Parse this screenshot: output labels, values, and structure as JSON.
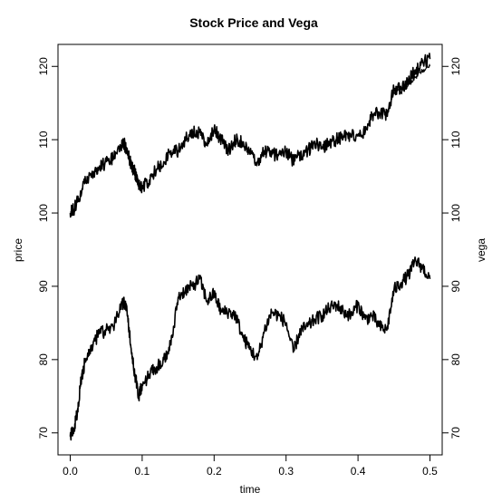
{
  "chart_data": {
    "type": "line",
    "title": "Stock Price and Vega",
    "xlabel": "time",
    "ylabel": "price",
    "y2label": "vega",
    "xlim": [
      -0.017,
      0.517
    ],
    "ylim": [
      67,
      123
    ],
    "xticks": [
      0.0,
      0.1,
      0.2,
      0.3,
      0.4,
      0.5
    ],
    "xtick_labels": [
      "0.0",
      "0.1",
      "0.2",
      "0.3",
      "0.4",
      "0.5"
    ],
    "yticks": [
      70,
      80,
      90,
      100,
      110,
      120
    ],
    "ytick_labels": [
      "70",
      "80",
      "90",
      "100",
      "110",
      "120"
    ],
    "y2ticks": [
      70,
      80,
      90,
      100,
      110,
      120
    ],
    "y2tick_labels": [
      "70",
      "80",
      "90",
      "100",
      "110",
      "120"
    ],
    "grid": false,
    "legend": "none",
    "series": [
      {
        "axis": "left",
        "x": [
          0.0,
          0.005,
          0.01,
          0.02,
          0.03,
          0.04,
          0.05,
          0.06,
          0.07,
          0.075,
          0.08,
          0.085,
          0.09,
          0.095,
          0.1,
          0.11,
          0.12,
          0.13,
          0.14,
          0.15,
          0.16,
          0.17,
          0.18,
          0.19,
          0.2,
          0.21,
          0.22,
          0.23,
          0.24,
          0.25,
          0.26,
          0.27,
          0.28,
          0.29,
          0.3,
          0.31,
          0.32,
          0.33,
          0.34,
          0.35,
          0.36,
          0.37,
          0.38,
          0.39,
          0.4,
          0.41,
          0.42,
          0.43,
          0.44,
          0.45,
          0.46,
          0.47,
          0.48,
          0.49,
          0.5
        ],
        "values": [
          100.0,
          100.5,
          101.5,
          104.0,
          105.5,
          106.0,
          107.0,
          107.5,
          109.0,
          109.5,
          108.0,
          106.5,
          105.5,
          104.0,
          103.5,
          104.5,
          106.0,
          107.0,
          108.5,
          108.5,
          110.0,
          111.0,
          111.0,
          109.5,
          111.5,
          110.0,
          108.5,
          110.0,
          109.5,
          108.0,
          107.0,
          108.5,
          108.0,
          108.0,
          108.5,
          107.0,
          108.0,
          108.5,
          109.5,
          109.0,
          109.5,
          110.0,
          110.5,
          110.5,
          110.5,
          111.0,
          113.5,
          113.5,
          113.5,
          117.0,
          117.0,
          118.0,
          119.5,
          120.5,
          121.0
        ]
      },
      {
        "axis": "left",
        "x": [
          0.44,
          0.45,
          0.46,
          0.47,
          0.48,
          0.49,
          0.5
        ],
        "values": [
          113.5,
          116.5,
          116.5,
          117.5,
          118.5,
          119.5,
          120.0
        ]
      },
      {
        "axis": "right",
        "x": [
          0.0,
          0.005,
          0.01,
          0.015,
          0.02,
          0.03,
          0.04,
          0.05,
          0.06,
          0.07,
          0.075,
          0.08,
          0.085,
          0.09,
          0.095,
          0.1,
          0.11,
          0.12,
          0.13,
          0.14,
          0.15,
          0.16,
          0.17,
          0.18,
          0.19,
          0.2,
          0.21,
          0.22,
          0.23,
          0.24,
          0.25,
          0.26,
          0.27,
          0.28,
          0.29,
          0.3,
          0.31,
          0.32,
          0.33,
          0.34,
          0.35,
          0.36,
          0.37,
          0.38,
          0.39,
          0.4,
          0.41,
          0.42,
          0.43,
          0.44,
          0.45,
          0.46,
          0.47,
          0.48,
          0.49,
          0.5
        ],
        "values": [
          69.5,
          70.5,
          73.0,
          77.0,
          79.5,
          82.0,
          83.5,
          84.0,
          84.5,
          87.0,
          88.0,
          86.0,
          81.0,
          78.0,
          75.0,
          76.5,
          78.0,
          79.0,
          80.0,
          82.0,
          88.5,
          89.5,
          90.0,
          91.0,
          88.0,
          89.0,
          86.5,
          86.5,
          86.0,
          83.0,
          81.5,
          80.0,
          84.0,
          86.5,
          86.0,
          85.0,
          81.0,
          84.0,
          84.5,
          85.5,
          86.0,
          87.0,
          87.5,
          86.5,
          86.0,
          87.5,
          85.5,
          86.0,
          84.5,
          84.0,
          89.5,
          90.5,
          91.5,
          93.5,
          92.5,
          91.0
        ]
      }
    ]
  }
}
